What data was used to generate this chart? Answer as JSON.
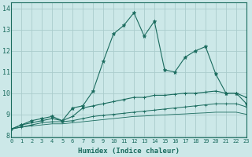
{
  "xlabel": "Humidex (Indice chaleur)",
  "bg_color": "#cce8e8",
  "grid_color": "#aacccc",
  "line_color": "#1a6b5e",
  "xlim": [
    0,
    23
  ],
  "ylim": [
    7.9,
    14.3
  ],
  "yticks": [
    8,
    9,
    10,
    11,
    12,
    13,
    14
  ],
  "xticks": [
    0,
    1,
    2,
    3,
    4,
    5,
    6,
    7,
    8,
    9,
    10,
    11,
    12,
    13,
    14,
    15,
    16,
    17,
    18,
    19,
    20,
    21,
    22,
    23
  ],
  "series1": [
    8.3,
    8.5,
    8.7,
    8.8,
    8.9,
    8.7,
    9.3,
    9.4,
    10.1,
    11.5,
    12.8,
    13.2,
    13.8,
    12.7,
    13.4,
    11.1,
    11.0,
    11.7,
    12.0,
    12.2,
    10.9,
    10.0,
    10.0,
    9.5
  ],
  "series2": [
    8.3,
    8.5,
    8.6,
    8.7,
    8.8,
    8.7,
    8.9,
    9.3,
    9.4,
    9.5,
    9.6,
    9.7,
    9.8,
    9.8,
    9.9,
    9.9,
    9.95,
    10.0,
    10.0,
    10.05,
    10.1,
    10.0,
    10.0,
    9.8
  ],
  "series3": [
    8.3,
    8.4,
    8.5,
    8.6,
    8.65,
    8.65,
    8.7,
    8.8,
    8.9,
    8.95,
    9.0,
    9.05,
    9.1,
    9.15,
    9.2,
    9.25,
    9.3,
    9.35,
    9.4,
    9.45,
    9.5,
    9.5,
    9.5,
    9.35
  ],
  "series4": [
    8.3,
    8.4,
    8.45,
    8.5,
    8.55,
    8.55,
    8.6,
    8.65,
    8.7,
    8.75,
    8.8,
    8.85,
    8.9,
    8.92,
    8.95,
    8.97,
    9.0,
    9.02,
    9.05,
    9.07,
    9.1,
    9.1,
    9.1,
    9.0
  ]
}
